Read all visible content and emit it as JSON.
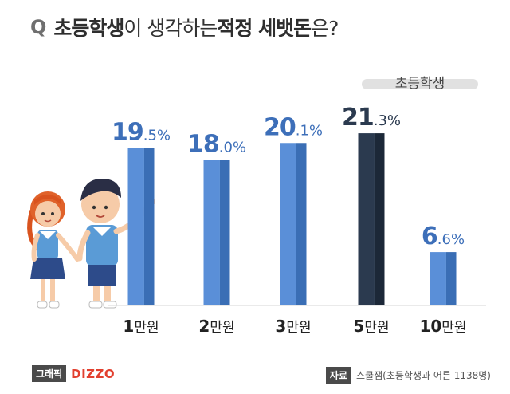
{
  "title": {
    "q_mark": "Q",
    "part1": "초등학생",
    "part2": "이 생각하는 ",
    "part3": "적정 세뱃돈",
    "part4": "은?"
  },
  "footer": {
    "graphic_label": "그래픽",
    "brand": "DIZZO",
    "source_label": "자료",
    "source": "스쿨잼(초등학생과 어른 1138명)"
  },
  "colors": {
    "bar_front": "#5a8fd8",
    "bar_side": "#3a6eb5",
    "bar_highlight_front": "#2b3a4f",
    "bar_highlight_side": "#1c2838",
    "label_color": "#3d6fb9",
    "label_highlight": "#2b3a4f"
  },
  "chart_data": {
    "type": "bar",
    "categories": [
      "1만원",
      "2만원",
      "3만원",
      "5만원",
      "10만원"
    ],
    "values": [
      19.5,
      18.0,
      20.1,
      21.3,
      6.6
    ],
    "value_labels": {
      "integer": [
        "19",
        "18",
        "20",
        "21",
        "6"
      ],
      "decimal": [
        ".5%",
        ".0%",
        ".1%",
        ".3%",
        ".6%"
      ]
    },
    "series": [
      {
        "name": "초등학생",
        "values": [
          19.5,
          18.0,
          20.1,
          21.3,
          6.6
        ]
      }
    ],
    "highlight_index": 3,
    "unit": "%",
    "ylim": [
      0,
      22
    ],
    "title": "초등학생이 생각하는 적정 세뱃돈은?",
    "xlabel": "",
    "ylabel": "",
    "grid": false,
    "legend_position": "top-right"
  }
}
